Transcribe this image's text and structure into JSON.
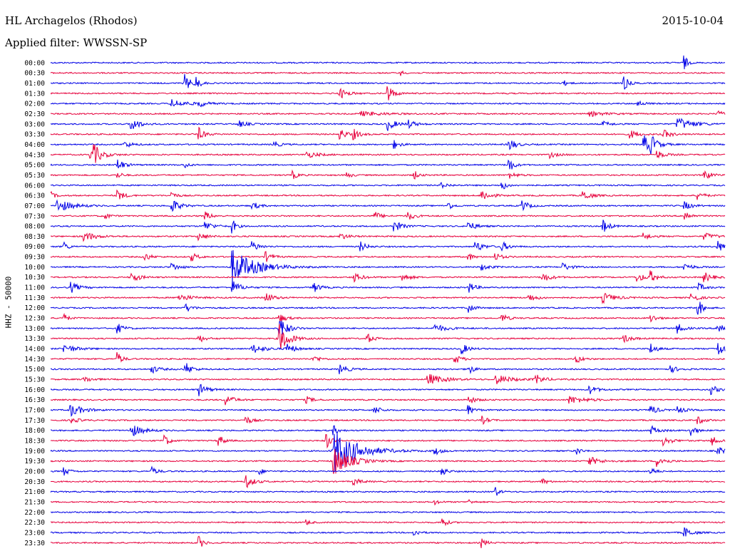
{
  "header": {
    "station": "HL Archagelos (Rhodos)",
    "date": "2015-10-04",
    "filter": "Applied filter: WWSSN-SP"
  },
  "colors": {
    "trace_a": "#0000e6",
    "trace_b": "#e6003c"
  },
  "chart_data": {
    "type": "line",
    "title": "HL Archagelos (Rhodos)",
    "ylabel": "HHZ - 50000",
    "grid": false,
    "rows": [
      {
        "label": "00:00",
        "color": "blue",
        "events": [
          [
            0.94,
            1.0,
            0.004
          ]
        ]
      },
      {
        "label": "00:30",
        "color": "red",
        "events": [
          [
            0.52,
            0.3,
            0.004
          ]
        ]
      },
      {
        "label": "01:00",
        "color": "blue",
        "events": [
          [
            0.2,
            1.2,
            0.006
          ],
          [
            0.215,
            0.9,
            0.006
          ],
          [
            0.76,
            0.4,
            0.006
          ],
          [
            0.85,
            1.0,
            0.006
          ]
        ]
      },
      {
        "label": "01:30",
        "color": "red",
        "events": [
          [
            0.43,
            0.6,
            0.01
          ],
          [
            0.5,
            1.1,
            0.008
          ]
        ]
      },
      {
        "label": "02:00",
        "color": "blue",
        "events": [
          [
            0.18,
            0.5,
            0.02
          ],
          [
            0.22,
            0.4,
            0.01
          ],
          [
            0.87,
            0.4,
            0.008
          ]
        ]
      },
      {
        "label": "02:30",
        "color": "red",
        "events": [
          [
            0.46,
            0.3,
            0.03
          ],
          [
            0.8,
            0.3,
            0.02
          ],
          [
            0.99,
            0.3,
            0.01
          ]
        ]
      },
      {
        "label": "03:00",
        "color": "blue",
        "events": [
          [
            0.12,
            0.9,
            0.01
          ],
          [
            0.28,
            0.4,
            0.01
          ],
          [
            0.5,
            0.8,
            0.01
          ],
          [
            0.53,
            0.5,
            0.01
          ],
          [
            0.93,
            0.8,
            0.02
          ],
          [
            0.82,
            0.3,
            0.01
          ]
        ]
      },
      {
        "label": "03:30",
        "color": "red",
        "events": [
          [
            0.22,
            0.8,
            0.008
          ],
          [
            0.43,
            0.7,
            0.008
          ],
          [
            0.45,
            0.6,
            0.008
          ],
          [
            0.86,
            0.5,
            0.01
          ],
          [
            0.91,
            0.5,
            0.01
          ]
        ]
      },
      {
        "label": "04:00",
        "color": "blue",
        "events": [
          [
            0.11,
            0.4,
            0.01
          ],
          [
            0.33,
            0.5,
            0.008
          ],
          [
            0.51,
            0.5,
            0.008
          ],
          [
            0.68,
            0.9,
            0.008
          ],
          [
            0.88,
            1.2,
            0.008
          ],
          [
            0.89,
            1.0,
            0.01
          ]
        ]
      },
      {
        "label": "04:30",
        "color": "red",
        "events": [
          [
            0.06,
            0.6,
            0.015
          ],
          [
            0.065,
            0.9,
            0.008
          ],
          [
            0.38,
            0.4,
            0.015
          ],
          [
            0.74,
            0.4,
            0.01
          ],
          [
            0.9,
            0.5,
            0.01
          ]
        ]
      },
      {
        "label": "05:00",
        "color": "blue",
        "events": [
          [
            0.1,
            0.8,
            0.008
          ],
          [
            0.2,
            0.4,
            0.005
          ],
          [
            0.68,
            1.0,
            0.006
          ]
        ]
      },
      {
        "label": "05:30",
        "color": "red",
        "events": [
          [
            0.1,
            0.4,
            0.006
          ],
          [
            0.36,
            0.5,
            0.006
          ],
          [
            0.44,
            0.4,
            0.006
          ],
          [
            0.54,
            0.5,
            0.006
          ],
          [
            0.68,
            0.4,
            0.01
          ],
          [
            0.97,
            0.7,
            0.008
          ]
        ]
      },
      {
        "label": "06:00",
        "color": "blue",
        "events": [
          [
            0.67,
            0.6,
            0.006
          ],
          [
            0.58,
            0.3,
            0.01
          ]
        ]
      },
      {
        "label": "06:30",
        "color": "red",
        "events": [
          [
            0.0,
            0.5,
            0.006
          ],
          [
            0.1,
            0.7,
            0.008
          ],
          [
            0.18,
            0.5,
            0.006
          ],
          [
            0.64,
            0.8,
            0.01
          ],
          [
            0.79,
            0.7,
            0.01
          ],
          [
            0.96,
            0.5,
            0.008
          ]
        ]
      },
      {
        "label": "07:00",
        "color": "blue",
        "events": [
          [
            0.01,
            0.8,
            0.02
          ],
          [
            0.18,
            0.9,
            0.01
          ],
          [
            0.3,
            0.5,
            0.008
          ],
          [
            0.59,
            0.5,
            0.006
          ],
          [
            0.7,
            0.7,
            0.008
          ],
          [
            0.94,
            0.5,
            0.01
          ]
        ]
      },
      {
        "label": "07:30",
        "color": "red",
        "events": [
          [
            0.08,
            0.5,
            0.006
          ],
          [
            0.23,
            0.5,
            0.008
          ],
          [
            0.48,
            0.6,
            0.008
          ],
          [
            0.53,
            0.6,
            0.008
          ],
          [
            0.94,
            0.9,
            0.006
          ]
        ]
      },
      {
        "label": "08:00",
        "color": "blue",
        "events": [
          [
            0.23,
            0.6,
            0.01
          ],
          [
            0.27,
            0.9,
            0.005
          ],
          [
            0.51,
            0.7,
            0.01
          ],
          [
            0.62,
            0.6,
            0.01
          ],
          [
            0.82,
            0.8,
            0.008
          ]
        ]
      },
      {
        "label": "08:30",
        "color": "red",
        "events": [
          [
            0.05,
            0.6,
            0.015
          ],
          [
            0.22,
            0.5,
            0.01
          ],
          [
            0.43,
            0.4,
            0.01
          ],
          [
            0.88,
            0.4,
            0.01
          ],
          [
            0.97,
            0.4,
            0.015
          ]
        ]
      },
      {
        "label": "09:00",
        "color": "blue",
        "events": [
          [
            0.02,
            0.6,
            0.006
          ],
          [
            0.3,
            0.7,
            0.008
          ],
          [
            0.46,
            0.6,
            0.008
          ],
          [
            0.63,
            0.7,
            0.01
          ],
          [
            0.67,
            0.6,
            0.008
          ],
          [
            0.99,
            0.7,
            0.01
          ]
        ]
      },
      {
        "label": "09:30",
        "color": "red",
        "events": [
          [
            0.14,
            0.5,
            0.008
          ],
          [
            0.21,
            0.5,
            0.008
          ],
          [
            0.32,
            0.6,
            0.008
          ],
          [
            0.62,
            0.5,
            0.006
          ],
          [
            0.66,
            0.5,
            0.008
          ]
        ]
      },
      {
        "label": "10:00",
        "color": "blue",
        "events": [
          [
            0.27,
            2.2,
            0.03
          ],
          [
            0.18,
            0.5,
            0.01
          ],
          [
            0.76,
            0.5,
            0.01
          ],
          [
            0.64,
            0.4,
            0.01
          ],
          [
            0.94,
            0.5,
            0.01
          ]
        ]
      },
      {
        "label": "10:30",
        "color": "red",
        "events": [
          [
            0.12,
            0.7,
            0.01
          ],
          [
            0.45,
            0.6,
            0.01
          ],
          [
            0.52,
            0.6,
            0.01
          ],
          [
            0.73,
            0.6,
            0.01
          ],
          [
            0.87,
            0.6,
            0.01
          ],
          [
            0.89,
            0.7,
            0.008
          ],
          [
            0.97,
            0.6,
            0.01
          ]
        ]
      },
      {
        "label": "11:00",
        "color": "blue",
        "events": [
          [
            0.03,
            0.7,
            0.01
          ],
          [
            0.27,
            0.9,
            0.01
          ],
          [
            0.39,
            0.7,
            0.008
          ],
          [
            0.62,
            0.7,
            0.008
          ],
          [
            0.96,
            0.6,
            0.008
          ]
        ]
      },
      {
        "label": "11:30",
        "color": "red",
        "events": [
          [
            0.19,
            0.5,
            0.015
          ],
          [
            0.32,
            0.6,
            0.01
          ],
          [
            0.71,
            0.5,
            0.01
          ],
          [
            0.82,
            0.6,
            0.015
          ],
          [
            0.95,
            0.7,
            0.008
          ]
        ]
      },
      {
        "label": "12:00",
        "color": "blue",
        "events": [
          [
            0.2,
            0.6,
            0.008
          ],
          [
            0.62,
            0.8,
            0.006
          ],
          [
            0.96,
            1.2,
            0.006
          ]
        ]
      },
      {
        "label": "12:30",
        "color": "red",
        "events": [
          [
            0.02,
            0.5,
            0.006
          ],
          [
            0.34,
            0.6,
            0.008
          ],
          [
            0.67,
            0.5,
            0.008
          ],
          [
            0.89,
            0.5,
            0.008
          ]
        ]
      },
      {
        "label": "13:00",
        "color": "blue",
        "events": [
          [
            0.1,
            0.6,
            0.008
          ],
          [
            0.34,
            1.5,
            0.01
          ],
          [
            0.57,
            0.5,
            0.015
          ],
          [
            0.93,
            0.6,
            0.008
          ],
          [
            0.99,
            0.9,
            0.008
          ]
        ]
      },
      {
        "label": "13:30",
        "color": "red",
        "events": [
          [
            0.34,
            1.8,
            0.012
          ],
          [
            0.47,
            0.6,
            0.008
          ],
          [
            0.85,
            0.5,
            0.01
          ],
          [
            0.22,
            0.5,
            0.008
          ]
        ]
      },
      {
        "label": "14:00",
        "color": "blue",
        "events": [
          [
            0.02,
            0.6,
            0.015
          ],
          [
            0.3,
            0.6,
            0.015
          ],
          [
            0.35,
            0.7,
            0.01
          ],
          [
            0.61,
            0.7,
            0.008
          ],
          [
            0.89,
            0.7,
            0.008
          ],
          [
            0.99,
            1.0,
            0.008
          ]
        ]
      },
      {
        "label": "14:30",
        "color": "red",
        "events": [
          [
            0.1,
            0.8,
            0.006
          ],
          [
            0.39,
            0.5,
            0.008
          ],
          [
            0.6,
            0.6,
            0.008
          ],
          [
            0.78,
            0.5,
            0.008
          ]
        ]
      },
      {
        "label": "15:00",
        "color": "blue",
        "events": [
          [
            0.15,
            0.5,
            0.01
          ],
          [
            0.2,
            0.9,
            0.008
          ],
          [
            0.43,
            0.6,
            0.01
          ],
          [
            0.62,
            0.7,
            0.006
          ],
          [
            0.92,
            0.4,
            0.01
          ]
        ]
      },
      {
        "label": "15:30",
        "color": "red",
        "events": [
          [
            0.05,
            0.4,
            0.01
          ],
          [
            0.56,
            0.7,
            0.02
          ],
          [
            0.66,
            0.6,
            0.02
          ],
          [
            0.72,
            0.6,
            0.01
          ]
        ]
      },
      {
        "label": "16:00",
        "color": "blue",
        "events": [
          [
            0.22,
            0.8,
            0.01
          ],
          [
            0.8,
            0.5,
            0.01
          ],
          [
            0.98,
            0.6,
            0.008
          ]
        ]
      },
      {
        "label": "16:30",
        "color": "red",
        "events": [
          [
            0.26,
            0.7,
            0.01
          ],
          [
            0.38,
            0.4,
            0.008
          ],
          [
            0.62,
            0.6,
            0.008
          ],
          [
            0.77,
            0.5,
            0.02
          ]
        ]
      },
      {
        "label": "17:00",
        "color": "blue",
        "events": [
          [
            0.03,
            0.8,
            0.015
          ],
          [
            0.48,
            0.6,
            0.008
          ],
          [
            0.62,
            0.6,
            0.008
          ],
          [
            0.89,
            0.7,
            0.008
          ],
          [
            0.93,
            0.5,
            0.008
          ]
        ]
      },
      {
        "label": "17:30",
        "color": "red",
        "events": [
          [
            0.03,
            0.4,
            0.01
          ],
          [
            0.29,
            0.5,
            0.008
          ],
          [
            0.64,
            0.5,
            0.008
          ],
          [
            0.96,
            0.5,
            0.008
          ]
        ]
      },
      {
        "label": "18:00",
        "color": "blue",
        "events": [
          [
            0.12,
            0.8,
            0.015
          ],
          [
            0.42,
            0.6,
            0.006
          ],
          [
            0.89,
            0.6,
            0.01
          ],
          [
            0.95,
            0.8,
            0.006
          ]
        ]
      },
      {
        "label": "18:30",
        "color": "red",
        "events": [
          [
            0.17,
            0.7,
            0.006
          ],
          [
            0.25,
            0.8,
            0.006
          ],
          [
            0.41,
            0.9,
            0.006
          ],
          [
            0.91,
            0.6,
            0.01
          ],
          [
            0.98,
            0.6,
            0.008
          ]
        ]
      },
      {
        "label": "19:00",
        "color": "blue",
        "events": [
          [
            0.42,
            3.0,
            0.03
          ],
          [
            0.57,
            0.5,
            0.008
          ],
          [
            0.78,
            0.5,
            0.006
          ],
          [
            0.99,
            0.6,
            0.008
          ]
        ]
      },
      {
        "label": "19:30",
        "color": "red",
        "events": [
          [
            0.42,
            2.0,
            0.02
          ],
          [
            0.8,
            0.5,
            0.015
          ],
          [
            0.9,
            0.7,
            0.01
          ]
        ]
      },
      {
        "label": "20:00",
        "color": "blue",
        "events": [
          [
            0.02,
            0.5,
            0.008
          ],
          [
            0.15,
            0.5,
            0.008
          ],
          [
            0.31,
            0.4,
            0.006
          ],
          [
            0.58,
            0.7,
            0.006
          ],
          [
            0.89,
            0.6,
            0.006
          ]
        ]
      },
      {
        "label": "20:30",
        "color": "red",
        "events": [
          [
            0.29,
            0.8,
            0.01
          ],
          [
            0.45,
            0.4,
            0.01
          ],
          [
            0.73,
            0.4,
            0.006
          ]
        ]
      },
      {
        "label": "21:00",
        "color": "blue",
        "events": [
          [
            0.66,
            0.6,
            0.005
          ]
        ]
      },
      {
        "label": "21:30",
        "color": "red",
        "events": [
          [
            0.57,
            0.3,
            0.006
          ],
          [
            0.62,
            0.3,
            0.006
          ]
        ]
      },
      {
        "label": "22:00",
        "color": "blue",
        "events": []
      },
      {
        "label": "22:30",
        "color": "red",
        "events": [
          [
            0.38,
            0.3,
            0.006
          ],
          [
            0.58,
            0.8,
            0.006
          ]
        ]
      },
      {
        "label": "23:00",
        "color": "blue",
        "events": [
          [
            0.54,
            0.5,
            0.006
          ],
          [
            0.94,
            0.7,
            0.01
          ]
        ]
      },
      {
        "label": "23:30",
        "color": "red",
        "events": [
          [
            0.22,
            0.8,
            0.006
          ],
          [
            0.64,
            0.6,
            0.006
          ]
        ]
      }
    ]
  }
}
